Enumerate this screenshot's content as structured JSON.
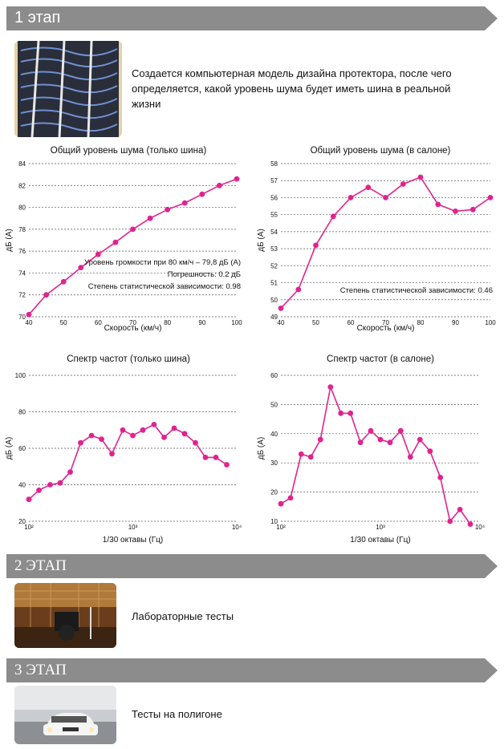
{
  "stages": [
    {
      "label": "1 этап",
      "caption": "Создается компьютерная модель дизайна протектора, после чего определяется, какой уровень шума будет иметь шина в реальной жизни",
      "photo_icon": "tire-tread-model-image"
    },
    {
      "label": "2 ЭТАП",
      "caption": "Лабораторные тесты",
      "photo_icon": "anechoic-lab-image"
    },
    {
      "label": "3 ЭТАП",
      "caption": "Тесты на полигоне",
      "photo_icon": "car-on-test-track-image"
    }
  ],
  "colors": {
    "series": "#e0238f",
    "banner": "#8c8c8c",
    "grid": "#555555"
  },
  "chart_data": [
    {
      "type": "line",
      "title": "Общий уровень шума (только шина)",
      "xlabel": "Скорость (км/ч)",
      "ylabel": "дБ (А)",
      "xlim": [
        40,
        100
      ],
      "ylim": [
        70,
        84
      ],
      "xticks": [
        40,
        50,
        60,
        70,
        80,
        90,
        100
      ],
      "yticks": [
        70,
        72,
        74,
        76,
        78,
        80,
        82,
        84
      ],
      "x": [
        40,
        45,
        50,
        55,
        60,
        65,
        70,
        75,
        80,
        85,
        90,
        95,
        100
      ],
      "y": [
        70.2,
        72.0,
        73.2,
        74.5,
        75.7,
        76.8,
        78.0,
        79.0,
        79.8,
        80.4,
        81.2,
        82.0,
        82.6
      ],
      "annotations": [
        "Уровень громкости при 80 км/ч – 79,8 дБ (A)",
        "Погрешность:  0.2 дБ",
        "Степень статистической зависимости: 0.98"
      ],
      "grid": "horizontal dashed"
    },
    {
      "type": "line",
      "title": "Общий уровень шума (в салоне)",
      "xlabel": "Скорость (км/ч)",
      "ylabel": "дБ (А)",
      "xlim": [
        40,
        100
      ],
      "ylim": [
        49,
        58
      ],
      "xticks": [
        40,
        50,
        60,
        70,
        80,
        90,
        100
      ],
      "yticks": [
        49,
        50,
        51,
        52,
        53,
        54,
        55,
        56,
        57,
        58
      ],
      "x": [
        40,
        45,
        50,
        55,
        60,
        65,
        70,
        75,
        80,
        85,
        90,
        95,
        100
      ],
      "y": [
        49.5,
        50.6,
        53.2,
        54.9,
        56.0,
        56.6,
        56.0,
        56.8,
        57.2,
        55.6,
        55.2,
        55.3,
        56.0
      ],
      "annotations": [
        "Степень статистической зависимости: 0.46"
      ],
      "grid": "horizontal dashed"
    },
    {
      "type": "line",
      "title": "Спектр частот (только шина)",
      "xlabel": "1/30 октавы (Гц)",
      "ylabel": "дБ (А)",
      "xscale": "log",
      "xlim": [
        100,
        10000
      ],
      "ylim": [
        20,
        100
      ],
      "xticks": [
        "10²",
        "10³",
        "10⁴"
      ],
      "yticks": [
        20,
        40,
        60,
        80,
        100
      ],
      "x": [
        100,
        125,
        160,
        200,
        250,
        315,
        400,
        500,
        630,
        800,
        1000,
        1250,
        1600,
        2000,
        2500,
        3150,
        4000,
        5000,
        6300,
        8000
      ],
      "y": [
        32,
        37,
        40,
        41,
        47,
        63,
        67,
        65,
        57,
        70,
        67,
        70,
        73,
        66,
        71,
        68,
        63,
        55,
        55,
        51
      ],
      "grid": "horizontal dashed"
    },
    {
      "type": "line",
      "title": "Спектр частот (в салоне)",
      "xlabel": "1/30 октавы (Гц)",
      "ylabel": "дБ (А)",
      "xscale": "log",
      "xlim": [
        100,
        10000
      ],
      "ylim": [
        10,
        60
      ],
      "xticks": [
        "10²",
        "10³",
        "10⁴"
      ],
      "yticks": [
        10,
        20,
        30,
        40,
        50,
        60
      ],
      "x": [
        100,
        125,
        160,
        200,
        250,
        315,
        400,
        500,
        630,
        800,
        1000,
        1250,
        1600,
        2000,
        2500,
        3150,
        4000,
        5000,
        6300,
        8000
      ],
      "y": [
        16,
        18,
        33,
        32,
        38,
        56,
        47,
        47,
        37,
        41,
        38,
        37,
        41,
        32,
        38,
        34,
        25,
        10,
        14,
        9
      ],
      "grid": "horizontal dashed"
    }
  ]
}
